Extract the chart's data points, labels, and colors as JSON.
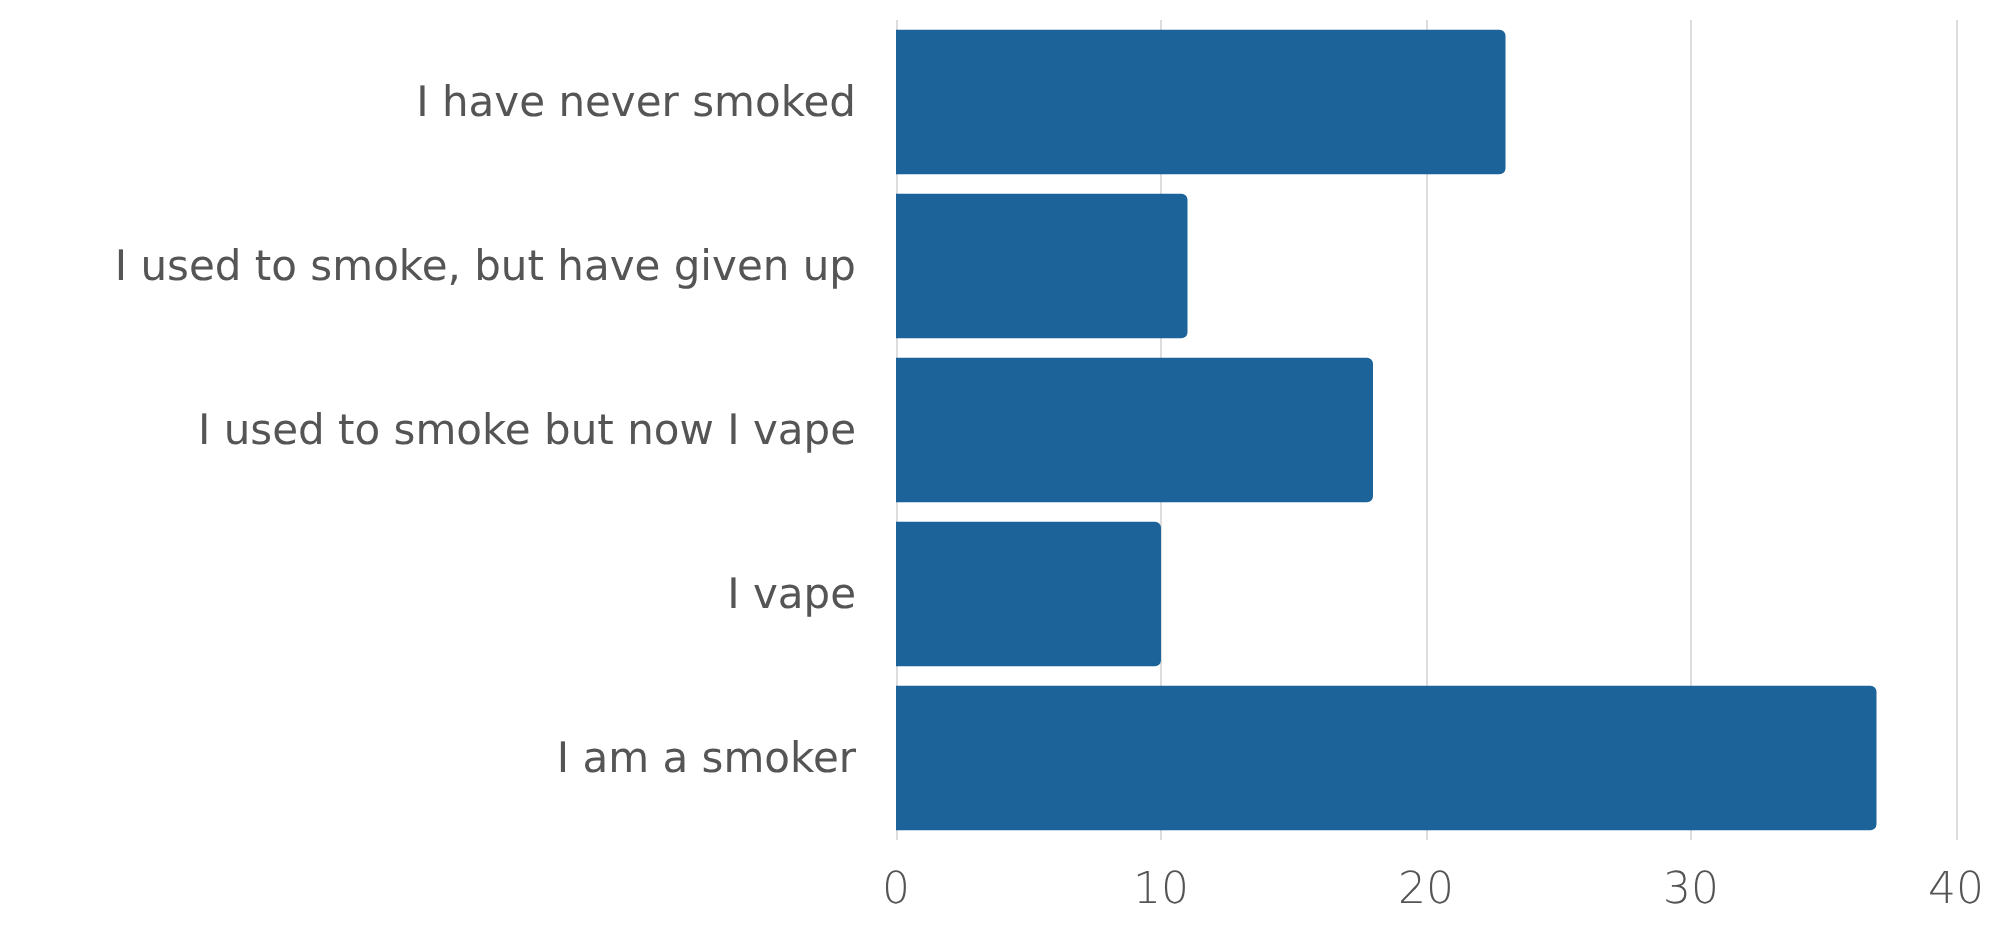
{
  "chart_data": {
    "type": "bar",
    "orientation": "horizontal",
    "categories": [
      "I have never smoked",
      "I used to smoke, but have given up",
      "I used to smoke but now I vape",
      "I vape",
      "I am a smoker"
    ],
    "values": [
      23,
      11,
      18,
      10,
      37
    ],
    "color": "#1c6399",
    "xlim": [
      0,
      40
    ],
    "xticks": [
      0,
      10,
      20,
      30,
      40
    ],
    "grid": "x"
  }
}
